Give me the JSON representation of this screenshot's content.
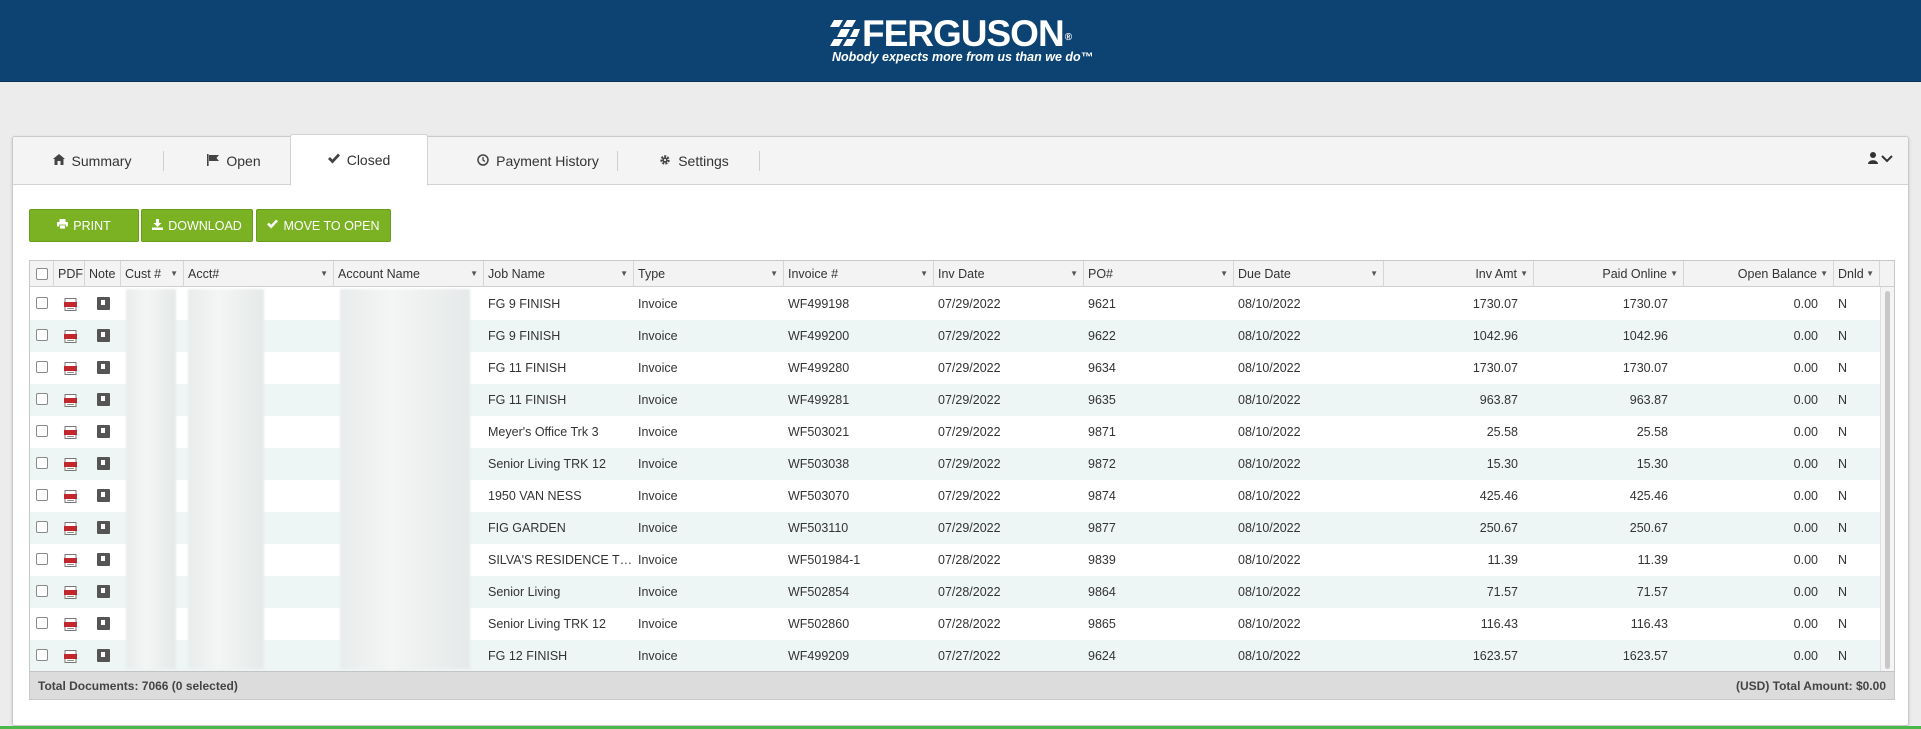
{
  "header": {
    "brand": "FERGUSON",
    "registered": "®",
    "tagline": "Nobody expects more from us than we do™",
    "bg_color": "#0c4373"
  },
  "tabs": [
    {
      "label": "Summary",
      "icon": "home-icon"
    },
    {
      "label": "Open",
      "icon": "flag-icon"
    },
    {
      "label": "Closed",
      "icon": "check-icon",
      "active": true
    },
    {
      "label": "Payment History",
      "icon": "clock-icon"
    },
    {
      "label": "Settings",
      "icon": "gear-icon"
    }
  ],
  "user_menu": {
    "icon": "user-icon",
    "caret": "chevron-down-icon"
  },
  "toolbar": {
    "print": "PRINT",
    "download": "DOWNLOAD",
    "move_to_open": "MOVE TO OPEN",
    "accent": "#7ab224"
  },
  "columns": {
    "pdf": "PDF",
    "note": "Note",
    "cust": "Cust #",
    "acct": "Acct#",
    "account_name": "Account Name",
    "job_name": "Job Name",
    "type": "Type",
    "invoice": "Invoice #",
    "inv_date": "Inv Date",
    "po": "PO#",
    "due_date": "Due Date",
    "inv_amt": "Inv Amt",
    "paid_online": "Paid Online",
    "open_balance": "Open Balance",
    "dnld": "Dnld"
  },
  "rows": [
    {
      "job": "FG 9 FINISH",
      "type": "Invoice",
      "invoice": "WF499198",
      "inv_date": "07/29/2022",
      "po": "9621",
      "due": "08/10/2022",
      "amt": "1730.07",
      "paid": "1730.07",
      "open": "0.00",
      "dnld": "N"
    },
    {
      "job": "FG 9 FINISH",
      "type": "Invoice",
      "invoice": "WF499200",
      "inv_date": "07/29/2022",
      "po": "9622",
      "due": "08/10/2022",
      "amt": "1042.96",
      "paid": "1042.96",
      "open": "0.00",
      "dnld": "N"
    },
    {
      "job": "FG 11 FINISH",
      "type": "Invoice",
      "invoice": "WF499280",
      "inv_date": "07/29/2022",
      "po": "9634",
      "due": "08/10/2022",
      "amt": "1730.07",
      "paid": "1730.07",
      "open": "0.00",
      "dnld": "N"
    },
    {
      "job": "FG 11 FINISH",
      "type": "Invoice",
      "invoice": "WF499281",
      "inv_date": "07/29/2022",
      "po": "9635",
      "due": "08/10/2022",
      "amt": "963.87",
      "paid": "963.87",
      "open": "0.00",
      "dnld": "N"
    },
    {
      "job": "Meyer's Office Trk 3",
      "type": "Invoice",
      "invoice": "WF503021",
      "inv_date": "07/29/2022",
      "po": "9871",
      "due": "08/10/2022",
      "amt": "25.58",
      "paid": "25.58",
      "open": "0.00",
      "dnld": "N"
    },
    {
      "job": "Senior Living TRK 12",
      "type": "Invoice",
      "invoice": "WF503038",
      "inv_date": "07/29/2022",
      "po": "9872",
      "due": "08/10/2022",
      "amt": "15.30",
      "paid": "15.30",
      "open": "0.00",
      "dnld": "N"
    },
    {
      "job": "1950 VAN NESS",
      "type": "Invoice",
      "invoice": "WF503070",
      "inv_date": "07/29/2022",
      "po": "9874",
      "due": "08/10/2022",
      "amt": "425.46",
      "paid": "425.46",
      "open": "0.00",
      "dnld": "N"
    },
    {
      "job": "FIG GARDEN",
      "type": "Invoice",
      "invoice": "WF503110",
      "inv_date": "07/29/2022",
      "po": "9877",
      "due": "08/10/2022",
      "amt": "250.67",
      "paid": "250.67",
      "open": "0.00",
      "dnld": "N"
    },
    {
      "job": "SILVA'S RESIDENCE TR ...",
      "type": "Invoice",
      "invoice": "WF501984-1",
      "inv_date": "07/28/2022",
      "po": "9839",
      "due": "08/10/2022",
      "amt": "11.39",
      "paid": "11.39",
      "open": "0.00",
      "dnld": "N"
    },
    {
      "job": "Senior Living",
      "type": "Invoice",
      "invoice": "WF502854",
      "inv_date": "07/28/2022",
      "po": "9864",
      "due": "08/10/2022",
      "amt": "71.57",
      "paid": "71.57",
      "open": "0.00",
      "dnld": "N"
    },
    {
      "job": "Senior Living TRK 12",
      "type": "Invoice",
      "invoice": "WF502860",
      "inv_date": "07/28/2022",
      "po": "9865",
      "due": "08/10/2022",
      "amt": "116.43",
      "paid": "116.43",
      "open": "0.00",
      "dnld": "N"
    },
    {
      "job": "FG 12 FINISH",
      "type": "Invoice",
      "invoice": "WF499209",
      "inv_date": "07/27/2022",
      "po": "9624",
      "due": "08/10/2022",
      "amt": "1623.57",
      "paid": "1623.57",
      "open": "0.00",
      "dnld": "N"
    }
  ],
  "footer": {
    "total_documents": "Total Documents: 7066 (0 selected)",
    "total_amount": "(USD) Total Amount: $0.00"
  }
}
